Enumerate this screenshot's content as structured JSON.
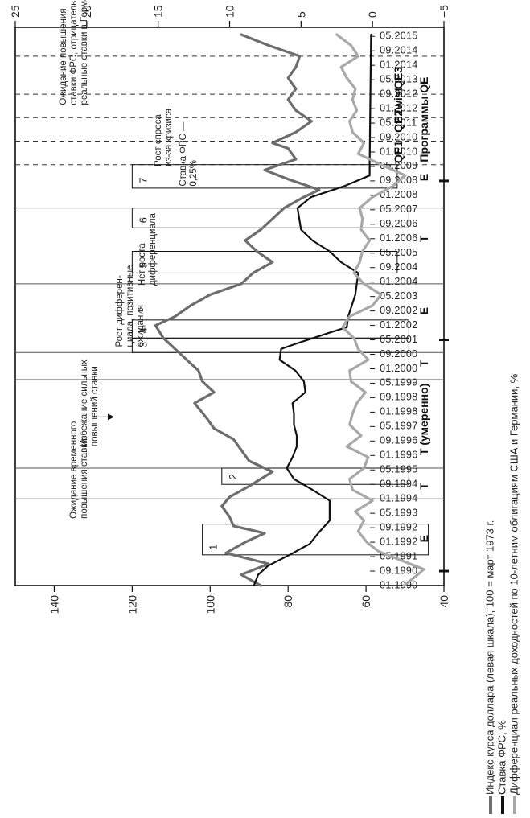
{
  "chart_data": {
    "type": "line",
    "orientation": "rotated-90-ccw",
    "x_tick_labels": [
      "01.1990",
      "09.1990",
      "05.1991",
      "01.1992",
      "09.1992",
      "05.1993",
      "01.1994",
      "09.1994",
      "05.1995",
      "01.1996",
      "09.1996",
      "05.1997",
      "01.1998",
      "09.1998",
      "05.1999",
      "01.2000",
      "09.2000",
      "05.2001",
      "01.2002",
      "09.2002",
      "05.2003",
      "01.2004",
      "09.2004",
      "05.2005",
      "01.2006",
      "09.2006",
      "05.2007",
      "01.2008",
      "09.2008",
      "05.2009",
      "01.2010",
      "09.2010",
      "05.2011",
      "01.2012",
      "09.2012",
      "05.2013",
      "01.2014",
      "09.2014",
      "05.2015"
    ],
    "left_axis": {
      "ticks": [
        40,
        60,
        80,
        100,
        120,
        140
      ],
      "range": [
        40,
        150
      ]
    },
    "right_axis": {
      "ticks": [
        -5,
        0,
        5,
        10,
        15,
        20,
        25
      ],
      "range": [
        -5,
        25
      ]
    },
    "grid": false,
    "legend_position": "bottom",
    "series": [
      {
        "name": "Индекс курса доллара (левая шкала), 100 = март 1973 г.",
        "axis": "left",
        "color": "#6d6d6d",
        "points": [
          [
            "1990-01",
            87
          ],
          [
            "1990-07",
            92
          ],
          [
            "1991-01",
            85
          ],
          [
            "1991-07",
            96
          ],
          [
            "1992-01",
            91
          ],
          [
            "1992-06",
            86
          ],
          [
            "1992-10",
            94
          ],
          [
            "1993-03",
            95
          ],
          [
            "1993-09",
            97
          ],
          [
            "1994-02",
            95
          ],
          [
            "1994-08",
            90
          ],
          [
            "1995-04",
            84
          ],
          [
            "1995-10",
            90
          ],
          [
            "1996-04",
            92
          ],
          [
            "1996-10",
            94
          ],
          [
            "1997-04",
            99
          ],
          [
            "1997-10",
            101
          ],
          [
            "1998-06",
            104
          ],
          [
            "1998-12",
            99
          ],
          [
            "1999-06",
            102
          ],
          [
            "1999-12",
            103
          ],
          [
            "2000-06",
            106
          ],
          [
            "2000-12",
            109
          ],
          [
            "2001-06",
            112
          ],
          [
            "2002-01",
            114
          ],
          [
            "2002-06",
            109
          ],
          [
            "2002-12",
            105
          ],
          [
            "2003-06",
            100
          ],
          [
            "2003-12",
            92
          ],
          [
            "2004-06",
            89
          ],
          [
            "2004-12",
            84
          ],
          [
            "2005-06",
            88
          ],
          [
            "2005-12",
            91
          ],
          [
            "2006-06",
            87
          ],
          [
            "2006-12",
            84
          ],
          [
            "2007-06",
            81
          ],
          [
            "2007-12",
            76
          ],
          [
            "2008-04",
            72
          ],
          [
            "2008-10",
            80
          ],
          [
            "2009-03",
            86
          ],
          [
            "2009-09",
            78
          ],
          [
            "2010-03",
            80
          ],
          [
            "2010-06",
            84
          ],
          [
            "2010-12",
            78
          ],
          [
            "2011-06",
            74
          ],
          [
            "2011-12",
            78
          ],
          [
            "2012-06",
            80
          ],
          [
            "2012-12",
            78
          ],
          [
            "2013-06",
            80
          ],
          [
            "2013-12",
            78
          ],
          [
            "2014-06",
            77
          ],
          [
            "2014-12",
            85
          ],
          [
            "2015-06",
            92
          ]
        ]
      },
      {
        "name": "Ставка ФРС, %",
        "axis": "right",
        "color": "#111111",
        "points": [
          [
            "1990-01",
            8.3
          ],
          [
            "1990-07",
            8.0
          ],
          [
            "1990-12",
            7.3
          ],
          [
            "1991-06",
            5.8
          ],
          [
            "1991-12",
            4.4
          ],
          [
            "1992-06",
            3.8
          ],
          [
            "1993-01",
            3.0
          ],
          [
            "1993-12",
            3.0
          ],
          [
            "1994-06",
            4.2
          ],
          [
            "1994-12",
            5.5
          ],
          [
            "1995-06",
            6.0
          ],
          [
            "1995-12",
            5.6
          ],
          [
            "1996-06",
            5.3
          ],
          [
            "1996-12",
            5.3
          ],
          [
            "1997-06",
            5.5
          ],
          [
            "1997-12",
            5.5
          ],
          [
            "1998-06",
            5.6
          ],
          [
            "1998-12",
            4.7
          ],
          [
            "1999-06",
            4.8
          ],
          [
            "1999-12",
            5.4
          ],
          [
            "2000-06",
            6.5
          ],
          [
            "2000-12",
            6.4
          ],
          [
            "2001-03",
            5.3
          ],
          [
            "2001-09",
            3.0
          ],
          [
            "2001-12",
            1.8
          ],
          [
            "2002-06",
            1.7
          ],
          [
            "2003-06",
            1.2
          ],
          [
            "2004-06",
            1.0
          ],
          [
            "2004-12",
            2.2
          ],
          [
            "2005-06",
            3.0
          ],
          [
            "2005-12",
            4.2
          ],
          [
            "2006-06",
            5.0
          ],
          [
            "2007-06",
            5.25
          ],
          [
            "2007-12",
            4.3
          ],
          [
            "2008-06",
            2.0
          ],
          [
            "2008-12",
            0.2
          ],
          [
            "2009-06",
            0.2
          ],
          [
            "2015-06",
            0.1
          ]
        ]
      },
      {
        "name": "Дифференциал реальных доходностей по 10-летним облигациям США и Германии, %",
        "axis": "right",
        "color": "#a8a8a8",
        "points": [
          [
            "1990-01",
            -2.2
          ],
          [
            "1990-06",
            -3.0
          ],
          [
            "1990-10",
            -3.6
          ],
          [
            "1991-03",
            -2.0
          ],
          [
            "1991-08",
            -0.4
          ],
          [
            "1992-01",
            0.4
          ],
          [
            "1992-07",
            1.0
          ],
          [
            "1993-01",
            0.6
          ],
          [
            "1993-06",
            1.2
          ],
          [
            "1993-12",
            0.0
          ],
          [
            "1994-06",
            1.4
          ],
          [
            "1994-12",
            1.6
          ],
          [
            "1995-06",
            0.6
          ],
          [
            "1995-12",
            0.3
          ],
          [
            "1996-06",
            1.8
          ],
          [
            "1996-12",
            0.8
          ],
          [
            "1997-06",
            1.6
          ],
          [
            "1997-12",
            1.4
          ],
          [
            "1998-06",
            1.1
          ],
          [
            "1998-12",
            0.5
          ],
          [
            "1999-06",
            1.5
          ],
          [
            "1999-12",
            1.6
          ],
          [
            "2000-06",
            0.3
          ],
          [
            "2000-12",
            1.0
          ],
          [
            "2001-06",
            1.3
          ],
          [
            "2001-12",
            2.1
          ],
          [
            "2002-06",
            1.6
          ],
          [
            "2002-12",
            0.0
          ],
          [
            "2003-06",
            -0.6
          ],
          [
            "2003-12",
            0.6
          ],
          [
            "2004-06",
            1.3
          ],
          [
            "2004-12",
            0.9
          ],
          [
            "2005-06",
            0.7
          ],
          [
            "2005-12",
            0.2
          ],
          [
            "2006-06",
            0.8
          ],
          [
            "2006-12",
            0.7
          ],
          [
            "2007-06",
            0.9
          ],
          [
            "2007-12",
            0.0
          ],
          [
            "2008-06",
            -1.4
          ],
          [
            "2008-12",
            -2.3
          ],
          [
            "2009-06",
            -0.6
          ],
          [
            "2009-12",
            1.0
          ],
          [
            "2010-06",
            0.6
          ],
          [
            "2010-12",
            1.4
          ],
          [
            "2011-06",
            1.6
          ],
          [
            "2011-12",
            1.1
          ],
          [
            "2012-06",
            1.4
          ],
          [
            "2012-12",
            1.2
          ],
          [
            "2013-06",
            1.8
          ],
          [
            "2013-12",
            2.2
          ],
          [
            "2014-06",
            1.0
          ],
          [
            "2014-12",
            1.5
          ],
          [
            "2015-06",
            2.5
          ]
        ]
      }
    ],
    "regimes": [
      {
        "label": "E",
        "date": "1992-03"
      },
      {
        "label": "T",
        "date": "1994-08"
      },
      {
        "label": "T (умеренно)",
        "date": "1997-09"
      },
      {
        "label": "T",
        "date": "2000-04"
      },
      {
        "label": "E",
        "date": "2002-09"
      },
      {
        "label": "T",
        "date": "2006-01"
      },
      {
        "label": "E",
        "date": "2008-11"
      },
      {
        "label": "Программы QE",
        "date": "2011-07"
      }
    ],
    "qe_labels": [
      {
        "label": "QE1",
        "date": "2010-01"
      },
      {
        "label": "QE2",
        "date": "2011-06"
      },
      {
        "label": "Twist",
        "date": "2012-05"
      },
      {
        "label": "QE3",
        "date": "2013-06"
      }
    ],
    "solid_dividers": [
      "1994-01",
      "1995-06",
      "1999-07",
      "2000-10",
      "2003-12",
      "2007-06"
    ],
    "dashed_dividers": [
      "2009-06",
      "2010-07",
      "2011-08",
      "2012-09",
      "2014-06"
    ],
    "boxes": [
      {
        "number": "1",
        "from": "1991-06",
        "to": "1992-11"
      },
      {
        "number": "2",
        "from": "1994-09",
        "to": "1995-06"
      },
      {
        "number": "3",
        "from": "2000-10",
        "to": "2001-06"
      },
      {
        "number": "4",
        "from": "2001-06",
        "to": "2002-04"
      },
      {
        "number": "5",
        "from": "2004-06",
        "to": "2005-06"
      },
      {
        "number": "6",
        "from": "2006-07",
        "to": "2007-06"
      },
      {
        "number": "7",
        "from": "2008-05",
        "to": "2009-06"
      }
    ],
    "annotations": [
      {
        "id": "ann1",
        "lines": [
          "Ожидание временного",
          "повышения ставки"
        ]
      },
      {
        "id": "ann2",
        "lines": [
          "Избежание сильных",
          "повышений ставки"
        ]
      },
      {
        "id": "ann3",
        "lines": [
          "Рост дифферен-",
          "циала, позитивные",
          "ожидания"
        ]
      },
      {
        "id": "ann4",
        "lines": [
          "Нет роста",
          "дифференциала"
        ]
      },
      {
        "id": "ann5",
        "lines": [
          "Рост спроса",
          "из-за кризиса"
        ]
      },
      {
        "id": "ann6",
        "lines": [
          "Ставка ФРС —",
          "0,25%"
        ]
      },
      {
        "id": "ann7",
        "lines": [
          "Ожидание повышения",
          "ставки ФРС, отрицательные",
          "реальные ставки в Германии"
        ]
      }
    ],
    "axis_markers": [
      "1990-09",
      "2001-05",
      "2008-09"
    ]
  }
}
